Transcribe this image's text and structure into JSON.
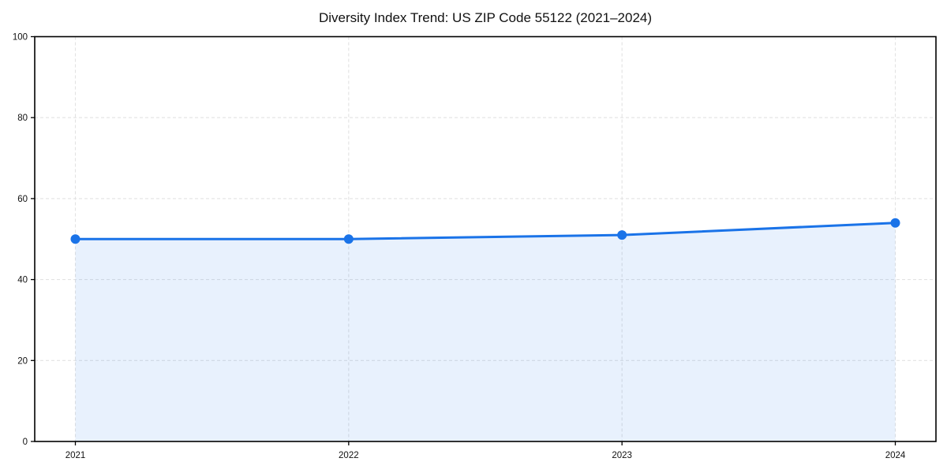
{
  "chart_data": {
    "type": "area",
    "title": "Diversity Index Trend: US ZIP Code 55122 (2021–2024)",
    "categories": [
      "2021",
      "2022",
      "2023",
      "2024"
    ],
    "series": [
      {
        "name": "Diversity Index",
        "values": [
          50,
          50,
          51,
          54
        ]
      }
    ],
    "xlabel": "",
    "ylabel": "",
    "ylim": [
      0,
      100
    ],
    "yticks": [
      0,
      20,
      40,
      60,
      80,
      100
    ],
    "grid": true,
    "grid_style": "dashed",
    "legend_position": "none",
    "markers": true,
    "colors": {
      "line": "#1a73e8",
      "marker": "#1a73e8",
      "fill": "rgba(26,115,232,0.10)",
      "grid": "#e2e2e2",
      "spine": "#000000",
      "tick_text": "#111111"
    }
  }
}
